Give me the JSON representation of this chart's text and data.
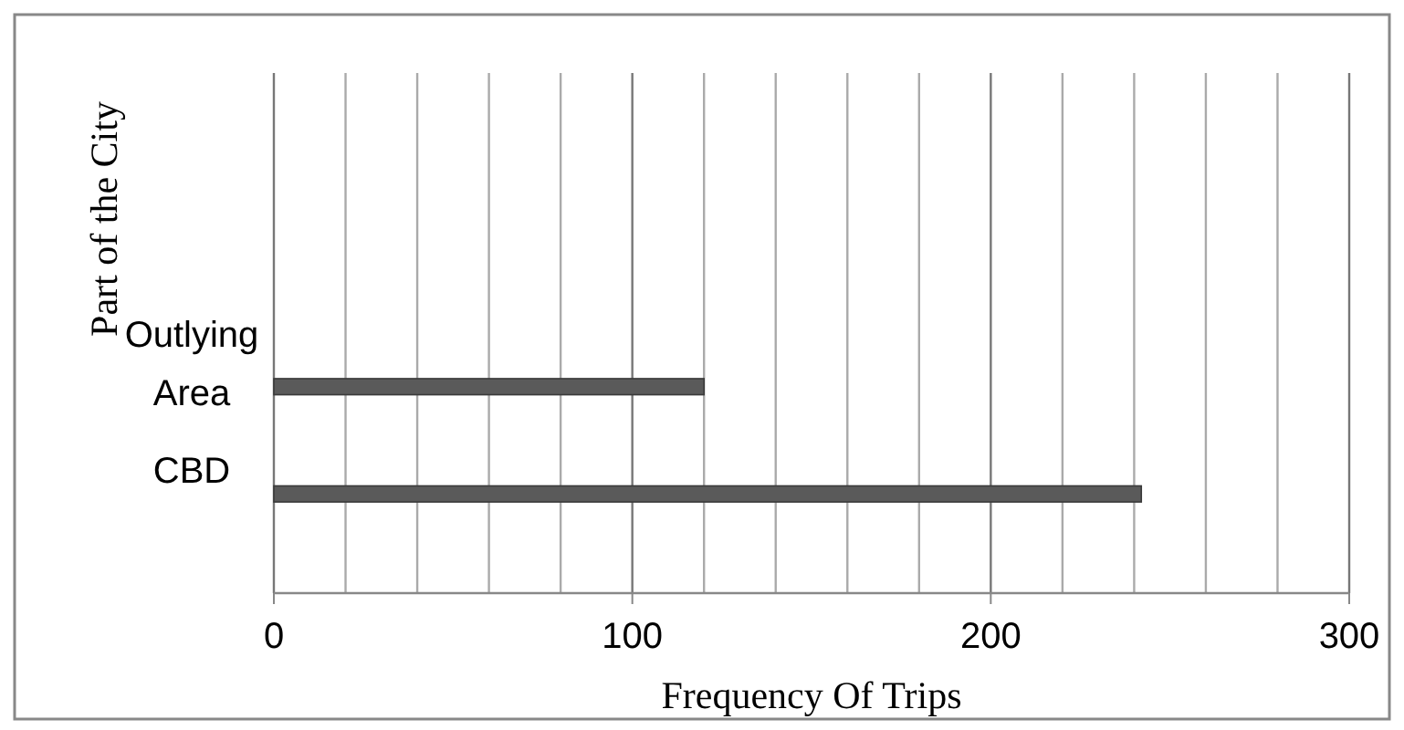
{
  "chart_data": {
    "type": "bar",
    "orientation": "horizontal",
    "xlabel": "Frequency Of Trips",
    "ylabel": "Part of the City",
    "categories": [
      null,
      null,
      "Outlying Area",
      "CBD"
    ],
    "values": [
      null,
      null,
      120,
      242
    ],
    "color": "#5a5a5a",
    "xlim": [
      0,
      300
    ],
    "xticks": [
      0,
      {
        "value": 20,
        "label": null
      },
      {
        "value": 40,
        "label": null
      },
      {
        "value": 60,
        "label": null
      },
      {
        "value": 80,
        "label": null
      },
      100,
      {
        "value": 120,
        "label": null
      },
      {
        "value": 140,
        "label": null
      },
      {
        "value": 160,
        "label": null
      },
      {
        "value": 180,
        "label": null
      },
      200,
      {
        "value": 220,
        "label": null
      },
      {
        "value": 240,
        "label": null
      },
      {
        "value": 260,
        "label": null
      },
      {
        "value": 280,
        "label": null
      },
      300
    ],
    "grid": "x"
  }
}
